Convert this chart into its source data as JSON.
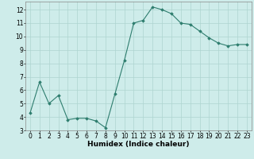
{
  "x": [
    0,
    1,
    2,
    3,
    4,
    5,
    6,
    7,
    8,
    9,
    10,
    11,
    12,
    13,
    14,
    15,
    16,
    17,
    18,
    19,
    20,
    21,
    22,
    23
  ],
  "y": [
    4.3,
    6.6,
    5.0,
    5.6,
    3.8,
    3.9,
    3.9,
    3.7,
    3.2,
    5.7,
    8.2,
    11.0,
    11.2,
    12.2,
    12.0,
    11.7,
    11.0,
    10.9,
    10.4,
    9.9,
    9.5,
    9.3,
    9.4,
    9.4
  ],
  "line_color": "#2e7d6e",
  "marker": "D",
  "marker_size": 1.8,
  "bg_color": "#ceecea",
  "grid_color": "#aed4d0",
  "xlabel": "Humidex (Indice chaleur)",
  "xlabel_fontsize": 6.5,
  "tick_fontsize": 5.5,
  "xlim": [
    -0.5,
    23.5
  ],
  "ylim": [
    3,
    12.6
  ],
  "yticks": [
    3,
    4,
    5,
    6,
    7,
    8,
    9,
    10,
    11,
    12
  ],
  "xticks": [
    0,
    1,
    2,
    3,
    4,
    5,
    6,
    7,
    8,
    9,
    10,
    11,
    12,
    13,
    14,
    15,
    16,
    17,
    18,
    19,
    20,
    21,
    22,
    23
  ]
}
